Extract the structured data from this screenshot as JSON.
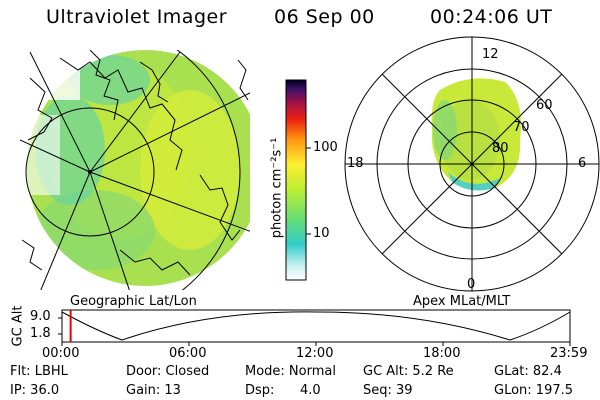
{
  "header": {
    "instrument": "Ultraviolet Imager",
    "date": "06 Sep 00",
    "time": "00:24:06 UT"
  },
  "colorbar": {
    "unit_label": "photon cm⁻²s⁻¹",
    "ticks": [
      "100",
      "10"
    ]
  },
  "geo_panel": {
    "label": "Geographic Lat/Lon"
  },
  "apex_panel": {
    "label": "Apex MLat/MLT",
    "mlt_labels": [
      "12",
      "18",
      "6",
      "0"
    ],
    "lat_labels": [
      "60",
      "70",
      "80"
    ]
  },
  "orbit_strip": {
    "axis_title": "GC Alt",
    "y_ticks": [
      "9.0",
      "1.8"
    ],
    "x_ticks": [
      "00:00",
      "06:00",
      "12:00",
      "18:00",
      "23:59"
    ],
    "current_time_fraction": 0.017
  },
  "status": {
    "flt": "Flt: LBHL",
    "ip": "IP: 36.0",
    "door": "Door: Closed",
    "gain": "Gain: 13",
    "mode": "Mode: Normal",
    "dsp_key": "Dsp:",
    "dsp_val": "4.0",
    "gc_alt": "GC Alt: 5.2 Re",
    "seq": "Seq: 39",
    "glat": "GLat: 82.4",
    "glon": "GLon: 197.5"
  }
}
